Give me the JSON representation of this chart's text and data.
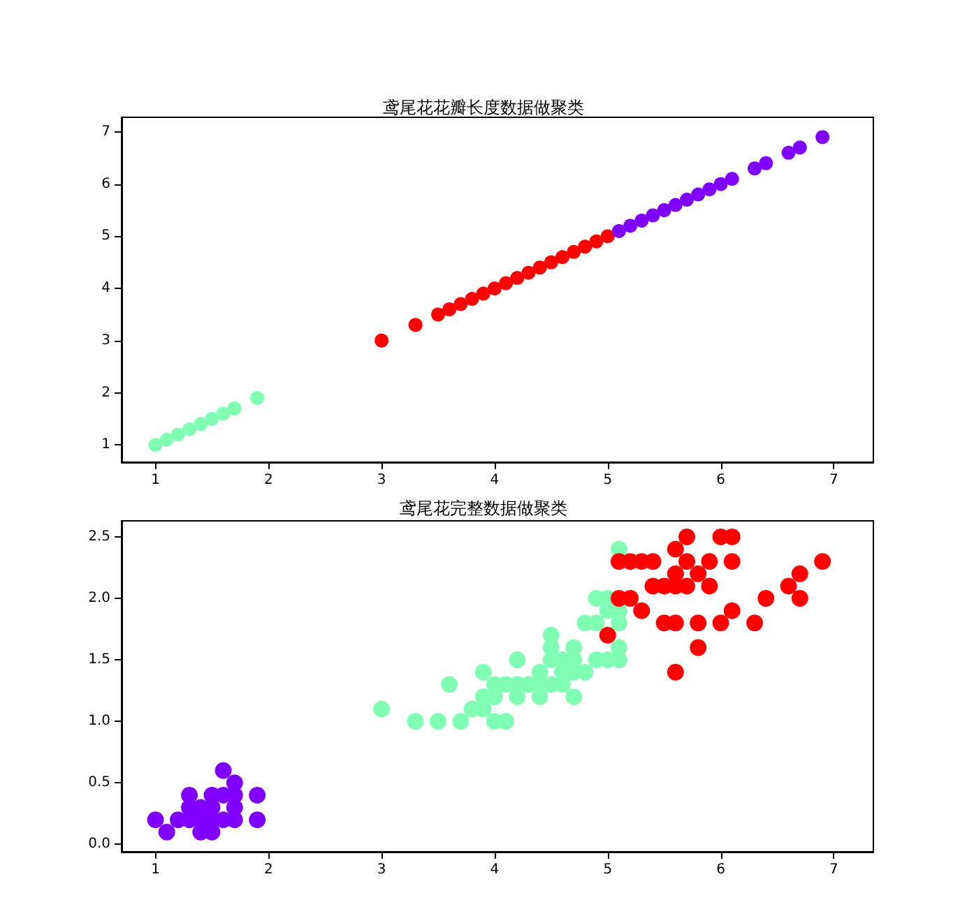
{
  "chart_data": [
    {
      "type": "scatter",
      "title": "鸢尾花花瓣长度数据做聚类",
      "xlim": [
        0.7,
        7.35
      ],
      "ylim": [
        0.67,
        7.28
      ],
      "xticks": [
        1,
        2,
        3,
        4,
        5,
        6,
        7
      ],
      "yticks": [
        1,
        2,
        3,
        4,
        5,
        6,
        7
      ],
      "grid": false,
      "marker": "circle",
      "series": [
        {
          "color": "#80ffb4",
          "x": [
            1.0,
            1.1,
            1.2,
            1.3,
            1.4,
            1.5,
            1.6,
            1.7,
            1.9
          ],
          "values": [
            1.0,
            1.1,
            1.2,
            1.3,
            1.4,
            1.5,
            1.6,
            1.7,
            1.9
          ]
        },
        {
          "color": "#ff0000",
          "x": [
            3.0,
            3.3,
            3.5,
            3.6,
            3.7,
            3.8,
            3.9,
            4.0,
            4.1,
            4.2,
            4.3,
            4.4,
            4.5,
            4.6,
            4.7,
            4.8,
            4.9,
            5.0
          ],
          "values": [
            3.0,
            3.3,
            3.5,
            3.6,
            3.7,
            3.8,
            3.9,
            4.0,
            4.1,
            4.2,
            4.3,
            4.4,
            4.5,
            4.6,
            4.7,
            4.8,
            4.9,
            5.0
          ]
        },
        {
          "color": "#8000ff",
          "x": [
            5.1,
            5.2,
            5.3,
            5.4,
            5.5,
            5.6,
            5.7,
            5.8,
            5.9,
            6.0,
            6.1,
            6.3,
            6.4,
            6.6,
            6.7,
            6.9
          ],
          "values": [
            5.1,
            5.2,
            5.3,
            5.4,
            5.5,
            5.6,
            5.7,
            5.8,
            5.9,
            6.0,
            6.1,
            6.3,
            6.4,
            6.6,
            6.7,
            6.9
          ]
        }
      ]
    },
    {
      "type": "scatter",
      "title": "鸢尾花完整数据做聚类",
      "xlim": [
        0.7,
        7.35
      ],
      "ylim": [
        -0.06,
        2.63
      ],
      "xticks": [
        1,
        2,
        3,
        4,
        5,
        6,
        7
      ],
      "yticks": [
        {
          "value": 0,
          "label": "0.0"
        },
        {
          "value": 0.5,
          "label": "0.5"
        },
        {
          "value": 1,
          "label": "1.0"
        },
        {
          "value": 1.5,
          "label": "1.5"
        },
        {
          "value": 2,
          "label": "2.0"
        },
        {
          "value": 2.5,
          "label": "2.5"
        }
      ],
      "grid": false,
      "marker": "circle",
      "series": [
        {
          "color": "#8000ff",
          "x": [
            1.0,
            1.1,
            1.2,
            1.3,
            1.3,
            1.3,
            1.4,
            1.4,
            1.4,
            1.5,
            1.5,
            1.5,
            1.5,
            1.6,
            1.6,
            1.6,
            1.7,
            1.7,
            1.7,
            1.7,
            1.9,
            1.9
          ],
          "values": [
            0.2,
            0.1,
            0.2,
            0.2,
            0.3,
            0.4,
            0.1,
            0.2,
            0.3,
            0.1,
            0.2,
            0.3,
            0.4,
            0.2,
            0.4,
            0.6,
            0.2,
            0.3,
            0.4,
            0.5,
            0.2,
            0.4
          ]
        },
        {
          "color": "#80ffb4",
          "x": [
            3.0,
            3.3,
            3.5,
            3.6,
            3.7,
            3.8,
            3.9,
            3.9,
            3.9,
            4.0,
            4.0,
            4.0,
            4.1,
            4.1,
            4.2,
            4.2,
            4.2,
            4.3,
            4.4,
            4.4,
            4.4,
            4.5,
            4.5,
            4.5,
            4.5,
            4.6,
            4.6,
            4.6,
            4.7,
            4.7,
            4.7,
            4.7,
            4.8,
            4.8,
            4.9,
            4.9,
            4.9,
            5.0,
            5.0,
            5.0,
            5.1,
            5.1,
            5.1,
            5.1,
            5.1
          ],
          "values": [
            1.1,
            1.0,
            1.0,
            1.3,
            1.0,
            1.1,
            1.1,
            1.2,
            1.4,
            1.0,
            1.2,
            1.3,
            1.0,
            1.3,
            1.2,
            1.3,
            1.5,
            1.3,
            1.2,
            1.3,
            1.4,
            1.3,
            1.5,
            1.6,
            1.7,
            1.3,
            1.4,
            1.5,
            1.2,
            1.4,
            1.5,
            1.6,
            1.4,
            1.8,
            1.5,
            1.8,
            2.0,
            1.5,
            1.9,
            2.0,
            1.5,
            1.6,
            1.8,
            1.9,
            2.4
          ]
        },
        {
          "color": "#ff0000",
          "x": [
            5.0,
            5.1,
            5.1,
            5.2,
            5.2,
            5.3,
            5.3,
            5.4,
            5.4,
            5.5,
            5.5,
            5.6,
            5.6,
            5.6,
            5.6,
            5.6,
            5.7,
            5.7,
            5.7,
            5.8,
            5.8,
            5.8,
            5.9,
            5.9,
            6.0,
            6.0,
            6.1,
            6.1,
            6.1,
            6.3,
            6.4,
            6.6,
            6.7,
            6.7,
            6.9
          ],
          "values": [
            1.7,
            2.0,
            2.3,
            2.0,
            2.3,
            1.9,
            2.3,
            2.1,
            2.3,
            1.8,
            2.1,
            1.4,
            1.8,
            2.1,
            2.2,
            2.4,
            2.1,
            2.3,
            2.5,
            1.6,
            1.8,
            2.2,
            2.1,
            2.3,
            1.8,
            2.5,
            1.9,
            2.3,
            2.5,
            1.8,
            2.0,
            2.1,
            2.0,
            2.2,
            2.3
          ]
        }
      ]
    }
  ]
}
